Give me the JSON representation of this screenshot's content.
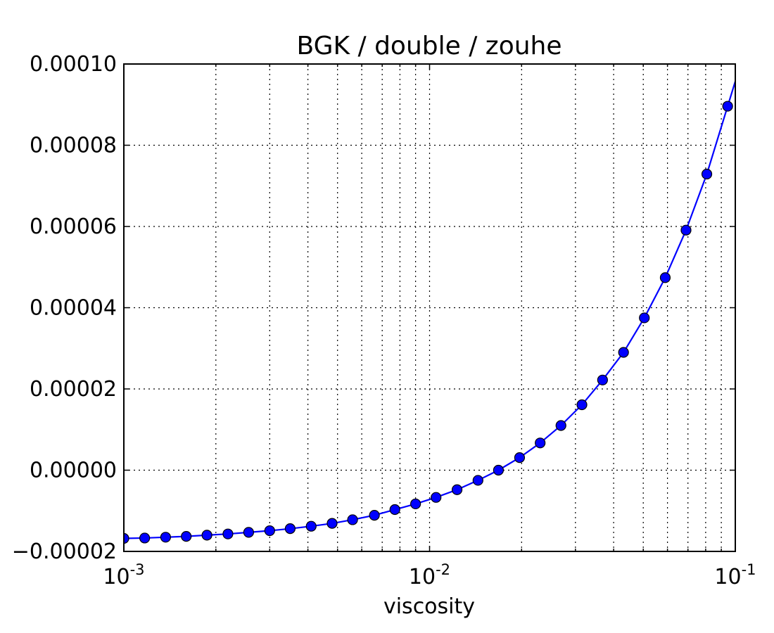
{
  "chart_data": {
    "type": "line",
    "title": "BGK / double / zouhe",
    "xlabel": "viscosity",
    "ylabel": "",
    "xscale": "log",
    "xlim": [
      0.001,
      0.1
    ],
    "ylim": [
      -2e-05,
      0.0001
    ],
    "grid": true,
    "x_ticks": [
      {
        "value": 0.001,
        "base": "10",
        "exp": "-3"
      },
      {
        "value": 0.01,
        "base": "10",
        "exp": "-2"
      },
      {
        "value": 0.1,
        "base": "10",
        "exp": "-1"
      }
    ],
    "y_ticks": [
      {
        "value": -2e-05,
        "label": "−0.00002"
      },
      {
        "value": 0.0,
        "label": "0.00000"
      },
      {
        "value": 2e-05,
        "label": "0.00002"
      },
      {
        "value": 4e-05,
        "label": "0.00004"
      },
      {
        "value": 6e-05,
        "label": "0.00006"
      },
      {
        "value": 8e-05,
        "label": "0.00008"
      },
      {
        "value": 0.0001,
        "label": "0.00010"
      }
    ],
    "series": [
      {
        "color": "#0000ff",
        "marker": "circle",
        "x": [
          0.001,
          0.00117,
          0.00137,
          0.0016,
          0.00187,
          0.00219,
          0.00256,
          0.003,
          0.0035,
          0.0041,
          0.0048,
          0.0056,
          0.0066,
          0.0077,
          0.009,
          0.0105,
          0.0123,
          0.0144,
          0.0168,
          0.0197,
          0.023,
          0.0269,
          0.0315,
          0.0368,
          0.0431,
          0.0504,
          0.059,
          0.069,
          0.0807,
          0.0944
        ],
        "y": [
          -1.68e-05,
          -1.67e-05,
          -1.65e-05,
          -1.63e-05,
          -1.6e-05,
          -1.57e-05,
          -1.53e-05,
          -1.49e-05,
          -1.44e-05,
          -1.38e-05,
          -1.31e-05,
          -1.22e-05,
          -1.11e-05,
          -9.7e-06,
          -8.3e-06,
          -6.7e-06,
          -4.8e-06,
          -2.5e-06,
          0.0,
          3.1e-06,
          6.7e-06,
          1.1e-05,
          1.61e-05,
          2.22e-05,
          2.9e-05,
          3.75e-05,
          4.74e-05,
          5.91e-05,
          7.29e-05,
          8.96e-05
        ]
      }
    ]
  }
}
